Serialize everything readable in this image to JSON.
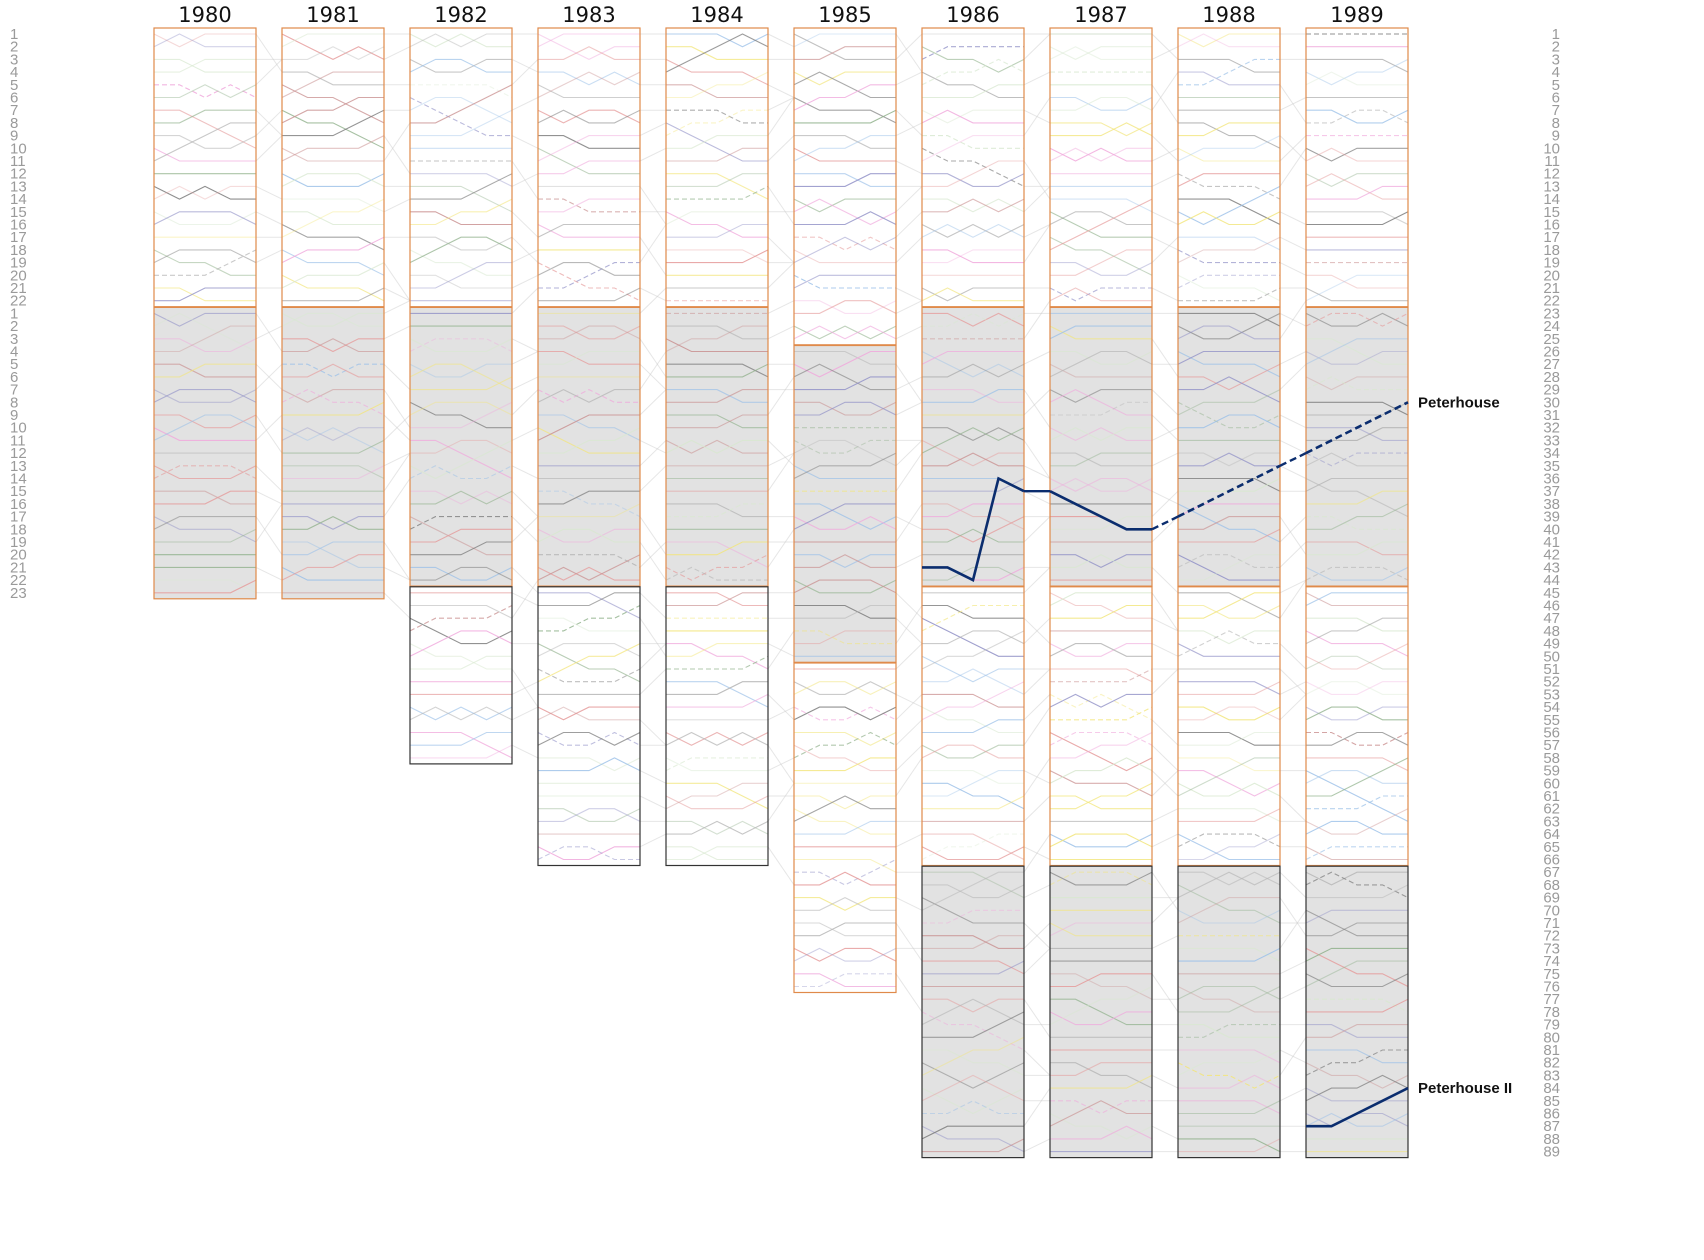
{
  "chart_data": {
    "type": "line",
    "title": "",
    "years": [
      "1980",
      "1981",
      "1982",
      "1983",
      "1984",
      "1985",
      "1986",
      "1987",
      "1988",
      "1989"
    ],
    "left_ranks": [
      "1",
      "2",
      "3",
      "4",
      "5",
      "6",
      "7",
      "8",
      "9",
      "10",
      "11",
      "12",
      "13",
      "14",
      "15",
      "16",
      "17",
      "18",
      "19",
      "20",
      "21",
      "22",
      "1",
      "2",
      "3",
      "4",
      "5",
      "6",
      "7",
      "8",
      "9",
      "10",
      "11",
      "12",
      "13",
      "14",
      "15",
      "16",
      "17",
      "18",
      "19",
      "20",
      "21",
      "22",
      "23"
    ],
    "right_ranks": [
      "1",
      "2",
      "3",
      "4",
      "5",
      "6",
      "7",
      "8",
      "9",
      "10",
      "11",
      "12",
      "13",
      "14",
      "15",
      "16",
      "17",
      "18",
      "19",
      "20",
      "21",
      "22",
      "23",
      "24",
      "25",
      "26",
      "27",
      "28",
      "29",
      "30",
      "31",
      "32",
      "33",
      "34",
      "35",
      "36",
      "37",
      "38",
      "39",
      "40",
      "41",
      "42",
      "43",
      "44",
      "45",
      "46",
      "47",
      "48",
      "49",
      "50",
      "51",
      "52",
      "53",
      "54",
      "55",
      "56",
      "57",
      "58",
      "59",
      "60",
      "61",
      "62",
      "63",
      "64",
      "65",
      "66",
      "67",
      "68",
      "69",
      "70",
      "71",
      "72",
      "73",
      "74",
      "75",
      "76",
      "77",
      "78",
      "79",
      "80",
      "81",
      "82",
      "83",
      "84",
      "85",
      "86",
      "87",
      "88",
      "89"
    ],
    "divisions": [
      [
        {
          "start": 1,
          "end": 22,
          "shade": false,
          "border": "orange"
        },
        {
          "start": 23,
          "end": 45,
          "shade": true,
          "border": "orange"
        }
      ],
      [
        {
          "start": 1,
          "end": 22,
          "shade": false,
          "border": "orange"
        },
        {
          "start": 23,
          "end": 45,
          "shade": true,
          "border": "orange"
        }
      ],
      [
        {
          "start": 1,
          "end": 22,
          "shade": false,
          "border": "orange"
        },
        {
          "start": 23,
          "end": 44,
          "shade": true,
          "border": "orange"
        },
        {
          "start": 45,
          "end": 58,
          "shade": false,
          "border": "dark"
        }
      ],
      [
        {
          "start": 1,
          "end": 22,
          "shade": false,
          "border": "orange"
        },
        {
          "start": 23,
          "end": 44,
          "shade": true,
          "border": "orange"
        },
        {
          "start": 45,
          "end": 66,
          "shade": false,
          "border": "dark"
        }
      ],
      [
        {
          "start": 1,
          "end": 22,
          "shade": false,
          "border": "orange"
        },
        {
          "start": 23,
          "end": 44,
          "shade": true,
          "border": "orange"
        },
        {
          "start": 45,
          "end": 66,
          "shade": false,
          "border": "dark"
        }
      ],
      [
        {
          "start": 1,
          "end": 25,
          "shade": false,
          "border": "orange"
        },
        {
          "start": 26,
          "end": 50,
          "shade": true,
          "border": "orange"
        },
        {
          "start": 51,
          "end": 76,
          "shade": false,
          "border": "orange"
        }
      ],
      [
        {
          "start": 1,
          "end": 22,
          "shade": false,
          "border": "orange"
        },
        {
          "start": 23,
          "end": 44,
          "shade": true,
          "border": "orange"
        },
        {
          "start": 45,
          "end": 66,
          "shade": false,
          "border": "orange"
        },
        {
          "start": 67,
          "end": 89,
          "shade": true,
          "border": "dark"
        }
      ],
      [
        {
          "start": 1,
          "end": 22,
          "shade": false,
          "border": "orange"
        },
        {
          "start": 23,
          "end": 44,
          "shade": true,
          "border": "orange"
        },
        {
          "start": 45,
          "end": 66,
          "shade": false,
          "border": "orange"
        },
        {
          "start": 67,
          "end": 89,
          "shade": true,
          "border": "dark"
        }
      ],
      [
        {
          "start": 1,
          "end": 22,
          "shade": false,
          "border": "orange"
        },
        {
          "start": 23,
          "end": 44,
          "shade": true,
          "border": "orange"
        },
        {
          "start": 45,
          "end": 66,
          "shade": false,
          "border": "orange"
        },
        {
          "start": 67,
          "end": 89,
          "shade": true,
          "border": "dark"
        }
      ],
      [
        {
          "start": 1,
          "end": 22,
          "shade": false,
          "border": "orange"
        },
        {
          "start": 23,
          "end": 44,
          "shade": true,
          "border": "orange"
        },
        {
          "start": 45,
          "end": 66,
          "shade": false,
          "border": "orange"
        },
        {
          "start": 67,
          "end": 89,
          "shade": true,
          "border": "dark"
        }
      ]
    ],
    "highlighted_series": [
      {
        "name": "Peterhouse",
        "color": "#0b2d6e",
        "segments": [
          {
            "year": "1986",
            "day_positions": [
              43,
              43,
              44,
              36,
              37
            ]
          },
          {
            "year": "1987",
            "day_positions": [
              37,
              38,
              39,
              40,
              40
            ]
          },
          {
            "year": "1988",
            "day_positions": [
              39,
              38,
              37,
              36,
              35
            ],
            "dashed": true
          },
          {
            "year": "1989",
            "day_positions": [
              34,
              33,
              32,
              31,
              30
            ],
            "dashed": true
          }
        ]
      },
      {
        "name": "Peterhouse II",
        "color": "#0b2d6e",
        "segments": [
          {
            "year": "1989",
            "day_positions": [
              87,
              87,
              86,
              85,
              84
            ]
          }
        ]
      }
    ],
    "background_palette": [
      "#7a7a7a",
      "#8f8fc6",
      "#8fb08a",
      "#e59a9a",
      "#f2e57a",
      "#f0a8dc",
      "#9bc0e8",
      "#b3b3b3",
      "#c98f8f",
      "#d8e8d0"
    ]
  }
}
